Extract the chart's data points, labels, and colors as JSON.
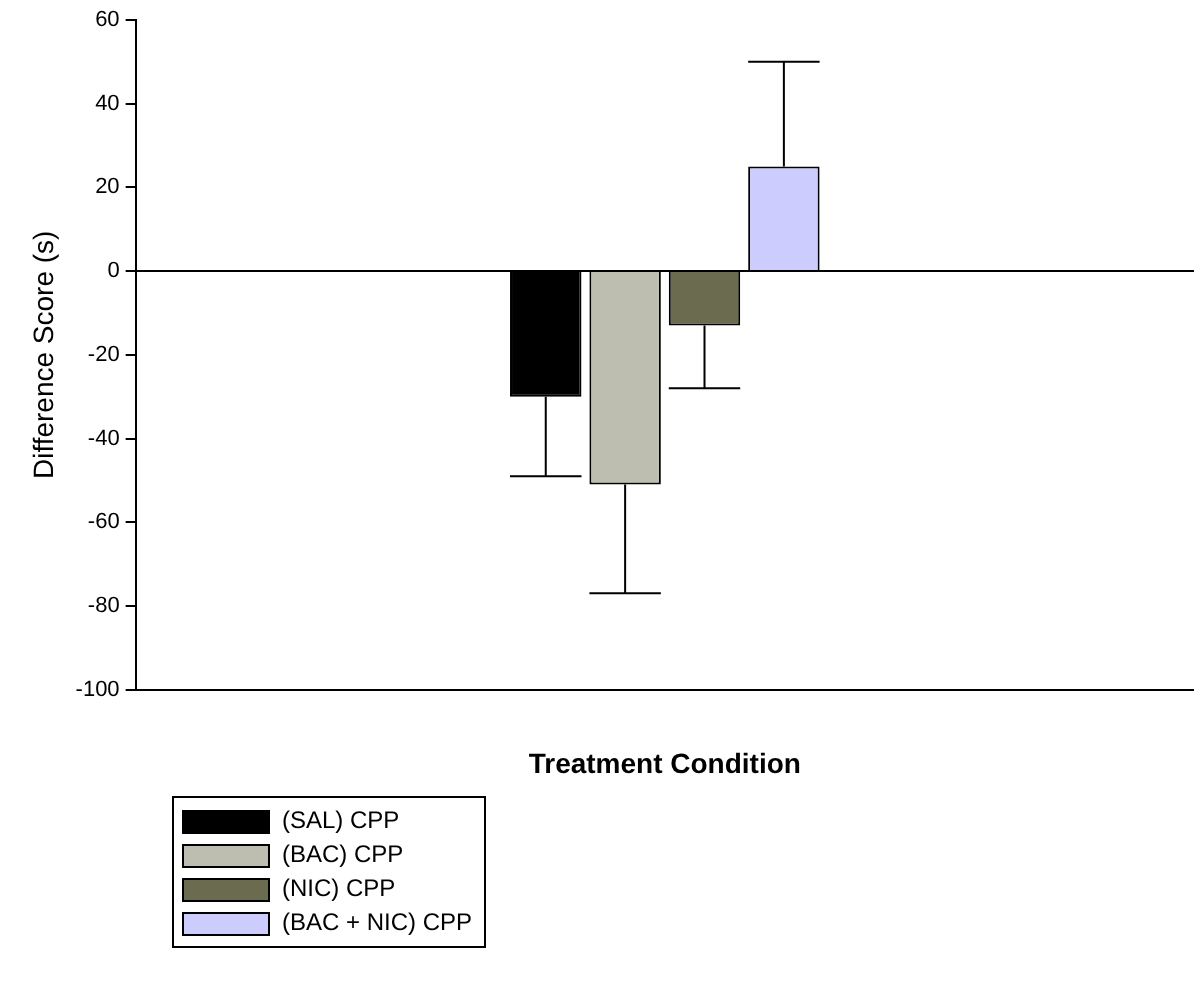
{
  "chart_data": {
    "type": "bar",
    "xlabel": "Treatment Condition",
    "ylabel": "Difference Score (s)",
    "categories": [
      null
    ],
    "series": [
      {
        "name": "(SAL) CPP",
        "color": "#000000",
        "values": [
          -30
        ],
        "errors": [
          [
            -49,
            -30
          ]
        ]
      },
      {
        "name": "(BAC) CPP",
        "color": "#bdbdb0",
        "values": [
          -51
        ],
        "errors": [
          [
            -77,
            -51
          ]
        ]
      },
      {
        "name": "(NIC) CPP",
        "color": "#6b6b4f",
        "values": [
          -13
        ],
        "errors": [
          [
            -28,
            -13
          ]
        ]
      },
      {
        "name": "(BAC + NIC) CPP",
        "color": "#ccccff",
        "values": [
          25
        ],
        "errors": [
          [
            25,
            50
          ]
        ]
      }
    ],
    "ylim": [
      -100,
      60
    ],
    "yticks": [
      -100,
      -80,
      -60,
      -40,
      -20,
      0,
      20,
      40,
      60
    ],
    "ref_lines": [
      {
        "axis": "y",
        "value": 0,
        "color": "#000000"
      }
    ],
    "grid": false,
    "legend": "bottom left"
  }
}
